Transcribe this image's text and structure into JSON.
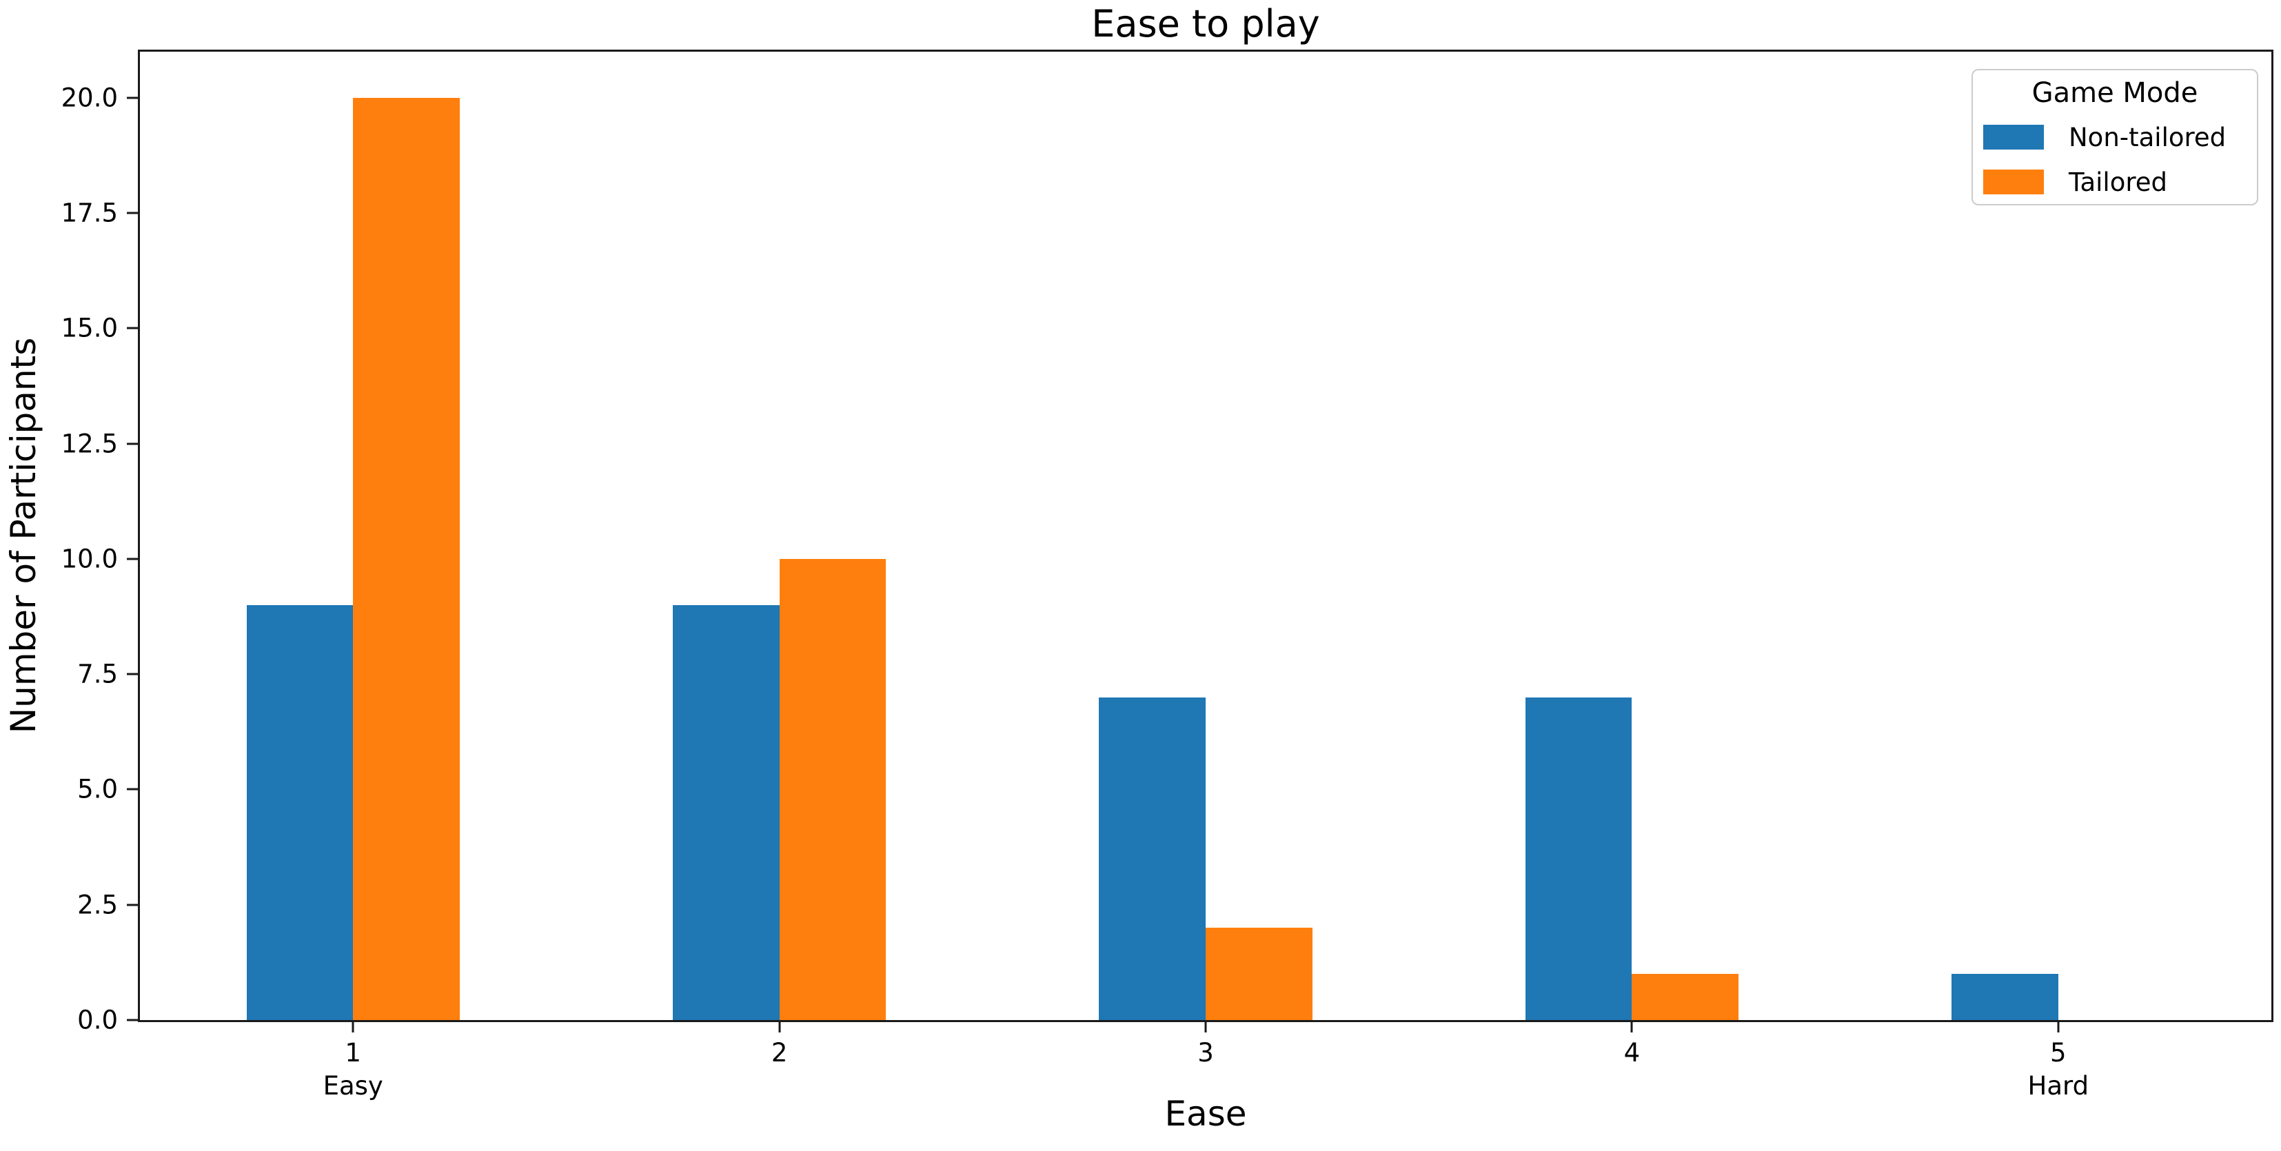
{
  "chart_data": {
    "type": "bar",
    "title": "Ease to play",
    "xlabel": "Ease",
    "ylabel": "Number of Participants",
    "categories": [
      "1",
      "2",
      "3",
      "4",
      "5"
    ],
    "category_sublabels": [
      "Easy",
      "",
      "",
      "",
      "Hard"
    ],
    "series": [
      {
        "name": "Non-tailored",
        "color": "#1f77b4",
        "values": [
          9,
          9,
          7,
          7,
          1
        ]
      },
      {
        "name": "Tailored",
        "color": "#ff7f0e",
        "values": [
          20,
          10,
          2,
          1,
          0
        ]
      }
    ],
    "legend": {
      "title": "Game Mode",
      "position": "upper right"
    },
    "ylim": [
      0,
      21
    ],
    "yticks": [
      0,
      2.5,
      5,
      7.5,
      10,
      12.5,
      15,
      17.5,
      20
    ],
    "ytick_labels": [
      "0.0",
      "2.5",
      "5.0",
      "7.5",
      "10.0",
      "12.5",
      "15.0",
      "17.5",
      "20.0"
    ],
    "xlim": [
      0.5,
      5.5
    ],
    "bar_width": 0.25,
    "grid": false,
    "axis_color": "#1a1a1a",
    "background": "#ffffff"
  }
}
